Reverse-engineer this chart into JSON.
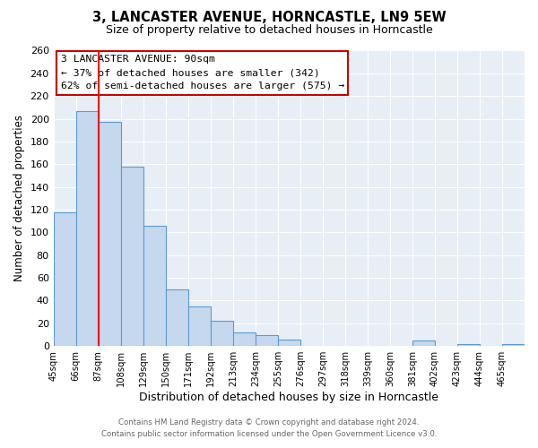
{
  "title": "3, LANCASTER AVENUE, HORNCASTLE, LN9 5EW",
  "subtitle": "Size of property relative to detached houses in Horncastle",
  "xlabel": "Distribution of detached houses by size in Horncastle",
  "ylabel": "Number of detached properties",
  "bin_labels": [
    "45sqm",
    "66sqm",
    "87sqm",
    "108sqm",
    "129sqm",
    "150sqm",
    "171sqm",
    "192sqm",
    "213sqm",
    "234sqm",
    "255sqm",
    "276sqm",
    "297sqm",
    "318sqm",
    "339sqm",
    "360sqm",
    "381sqm",
    "402sqm",
    "423sqm",
    "444sqm",
    "465sqm"
  ],
  "bin_edges": [
    45,
    66,
    87,
    108,
    129,
    150,
    171,
    192,
    213,
    234,
    255,
    276,
    297,
    318,
    339,
    360,
    381,
    402,
    423,
    444,
    465
  ],
  "bar_heights": [
    118,
    207,
    197,
    158,
    106,
    50,
    35,
    22,
    12,
    10,
    6,
    0,
    0,
    0,
    0,
    0,
    5,
    0,
    2,
    0,
    2
  ],
  "bar_color": "#c5d8ed",
  "bar_edge_color": "#5b9bd5",
  "red_line_x": 87,
  "ylim": [
    0,
    260
  ],
  "yticks": [
    0,
    20,
    40,
    60,
    80,
    100,
    120,
    140,
    160,
    180,
    200,
    220,
    240,
    260
  ],
  "ann_line1": "3 LANCASTER AVENUE: 90sqm",
  "ann_line2": "← 37% of detached houses are smaller (342)",
  "ann_line3": "62% of semi-detached houses are larger (575) →",
  "footer_line1": "Contains HM Land Registry data © Crown copyright and database right 2024.",
  "footer_line2": "Contains public sector information licensed under the Open Government Licence v3.0.",
  "bg_color": "#ffffff",
  "plot_bg_color": "#e8eef5"
}
